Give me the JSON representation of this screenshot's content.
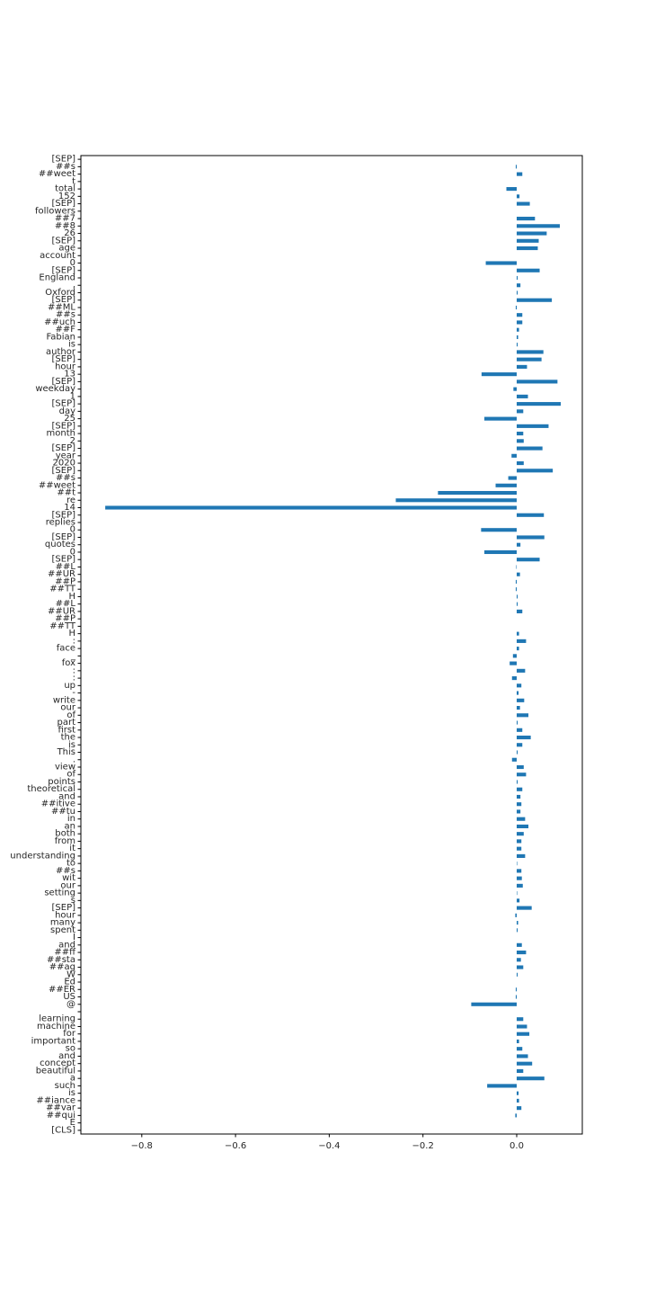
{
  "chart_data": {
    "type": "bar",
    "orientation": "horizontal",
    "title": "",
    "xlabel": "",
    "ylabel": "",
    "xlim": [
      -0.93,
      0.14
    ],
    "xticks": [
      -0.8,
      -0.6,
      -0.4,
      -0.2,
      0.0
    ],
    "xtick_labels": [
      "−0.8",
      "−0.6",
      "−0.4",
      "−0.2",
      "0.0"
    ],
    "grid": false,
    "bar_color": "#1f77b4",
    "categories": [
      "[CLS]",
      "E",
      "##qui",
      "##var",
      "##iance",
      "is",
      "such",
      "a",
      "beautiful",
      "concept",
      "and",
      "so",
      "important",
      "for",
      "machine",
      "learning",
      "",
      "@",
      "US",
      "##ER",
      "Ed",
      "W",
      "##ag",
      "##sta",
      "##ff",
      "and",
      "I",
      "spent",
      "many",
      "hour",
      "[SEP]",
      "s",
      "setting",
      "our",
      "wit",
      "##s",
      "to",
      "understanding",
      "it",
      "from",
      "both",
      "an",
      "in",
      "##tu",
      "##itive",
      "and",
      "theoretical",
      "points",
      "of",
      "view",
      ".",
      "This",
      "is",
      "the",
      "first",
      "part",
      "of",
      "our",
      "write",
      "-",
      "up",
      ":",
      ":",
      "fox",
      "_",
      "face",
      ":",
      "H",
      "##TT",
      "##P",
      "##UR",
      "##L",
      "H",
      "##TT",
      "##P",
      "##UR",
      "##L",
      "[SEP]",
      "0",
      "quotes",
      "[SEP]",
      "0",
      "replies",
      "[SEP]",
      "14",
      "re",
      "##t",
      "##weet",
      "##s",
      "[SEP]",
      "2020",
      "year",
      "[SEP]",
      "2",
      "month",
      "[SEP]",
      "25",
      "day",
      "[SEP]",
      "1",
      "weekday",
      "[SEP]",
      "13",
      "hour",
      "[SEP]",
      "author",
      "is",
      "Fabian",
      "##F",
      "##uch",
      "##s",
      "##ML",
      "[SEP]",
      "Oxford",
      ",",
      "England",
      "[SEP]",
      "0",
      "account",
      "age",
      "[SEP]",
      "26",
      "##8",
      "##7",
      "followers",
      "[SEP]",
      "152",
      "total",
      "t",
      "##weet",
      "##s",
      "[SEP]"
    ],
    "values": [
      0.0,
      0.0,
      -0.003,
      0.01,
      0.005,
      0.004,
      -0.063,
      0.059,
      0.014,
      0.033,
      0.024,
      0.012,
      0.005,
      0.027,
      0.022,
      0.014,
      0.0,
      -0.097,
      -0.002,
      -0.002,
      0.0,
      0.002,
      0.014,
      0.009,
      0.02,
      0.011,
      0.0,
      0.002,
      0.003,
      -0.003,
      0.032,
      0.006,
      0.001,
      0.013,
      0.011,
      0.01,
      0.001,
      0.018,
      0.01,
      0.01,
      0.015,
      0.025,
      0.018,
      0.008,
      0.01,
      0.008,
      0.012,
      0.002,
      0.02,
      0.015,
      -0.01,
      0.002,
      0.012,
      0.03,
      0.012,
      0.002,
      0.025,
      0.007,
      0.016,
      0.004,
      0.01,
      -0.01,
      0.018,
      -0.015,
      -0.008,
      0.005,
      0.02,
      0.005,
      0.0,
      0.0,
      0.012,
      0.002,
      0.002,
      -0.002,
      -0.002,
      0.007,
      -0.001,
      0.049,
      -0.069,
      0.008,
      0.059,
      -0.076,
      0.0,
      0.058,
      -0.878,
      -0.258,
      -0.168,
      -0.045,
      -0.018,
      0.077,
      0.015,
      -0.011,
      0.055,
      0.015,
      0.014,
      0.068,
      -0.069,
      0.014,
      0.094,
      0.024,
      -0.007,
      0.087,
      -0.075,
      0.022,
      0.053,
      0.057,
      0.002,
      0.003,
      0.005,
      0.012,
      0.012,
      -0.002,
      0.075,
      0.002,
      0.008,
      0.002,
      0.049,
      -0.066,
      0.0,
      0.045,
      0.047,
      0.064,
      0.092,
      0.039,
      0.0,
      0.028,
      0.006,
      -0.022,
      0.0,
      0.012,
      -0.002,
      0.0
    ]
  }
}
